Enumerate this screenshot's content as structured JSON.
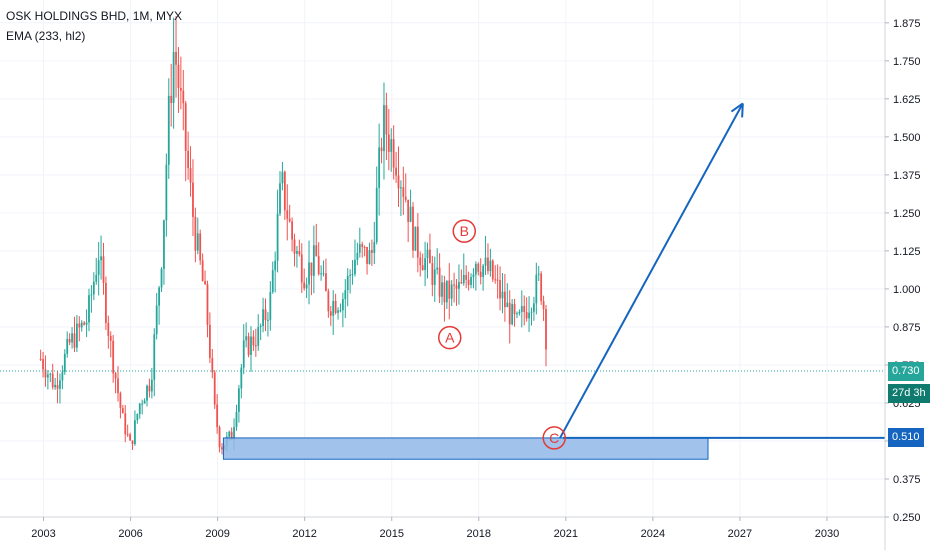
{
  "header": {
    "title": "OSK HOLDINGS BHD, 1M, MYX",
    "indicator": "EMA (233, hl2)"
  },
  "price_tags": {
    "last_price": "0.730",
    "countdown": "27d 3h",
    "level": "0.510"
  },
  "colors": {
    "up": "#26a69a",
    "down": "#ef5350",
    "drawing": "#1565c0",
    "zone_fill": "#90b8e8",
    "last_price_tag": "#26a69a",
    "countdown_tag": "#0f7a6e",
    "level_tag": "#1565c0",
    "wave_label": "#e53935"
  },
  "chart_data": {
    "type": "candlestick",
    "symbol": "OSK HOLDINGS BHD",
    "interval": "1M",
    "exchange": "MYX",
    "indicator": "EMA (233, hl2)",
    "ylim": [
      0.25,
      1.95
    ],
    "xlim": [
      2001.5,
      2032.0
    ],
    "y_ticks": [
      "1.875",
      "1.750",
      "1.625",
      "1.500",
      "1.375",
      "1.250",
      "1.125",
      "1.000",
      "0.875",
      "0.750",
      "0.625",
      "0.500",
      "0.375",
      "0.250"
    ],
    "x_ticks": [
      "2003",
      "2006",
      "2009",
      "2012",
      "2015",
      "2018",
      "2021",
      "2024",
      "2027",
      "2030"
    ],
    "last_price": 0.73,
    "grid": true,
    "path_points": [
      {
        "t": 2002.9,
        "v": 0.77
      },
      {
        "t": 2003.4,
        "v": 0.68
      },
      {
        "t": 2003.9,
        "v": 0.82
      },
      {
        "t": 2004.5,
        "v": 0.9
      },
      {
        "t": 2004.9,
        "v": 1.12
      },
      {
        "t": 2005.3,
        "v": 0.82
      },
      {
        "t": 2005.7,
        "v": 0.58
      },
      {
        "t": 2006.0,
        "v": 0.48
      },
      {
        "t": 2006.3,
        "v": 0.62
      },
      {
        "t": 2006.7,
        "v": 0.7
      },
      {
        "t": 2007.1,
        "v": 1.15
      },
      {
        "t": 2007.3,
        "v": 1.55
      },
      {
        "t": 2007.5,
        "v": 1.8
      },
      {
        "t": 2007.8,
        "v": 1.55
      },
      {
        "t": 2008.2,
        "v": 1.2
      },
      {
        "t": 2008.6,
        "v": 0.95
      },
      {
        "t": 2008.9,
        "v": 0.6
      },
      {
        "t": 2009.1,
        "v": 0.48
      },
      {
        "t": 2009.5,
        "v": 0.52
      },
      {
        "t": 2009.9,
        "v": 0.8
      },
      {
        "t": 2010.4,
        "v": 0.85
      },
      {
        "t": 2010.8,
        "v": 0.95
      },
      {
        "t": 2011.2,
        "v": 1.35
      },
      {
        "t": 2011.6,
        "v": 1.15
      },
      {
        "t": 2012.0,
        "v": 1.05
      },
      {
        "t": 2012.4,
        "v": 1.1
      },
      {
        "t": 2012.8,
        "v": 0.95
      },
      {
        "t": 2013.3,
        "v": 0.97
      },
      {
        "t": 2013.8,
        "v": 1.12
      },
      {
        "t": 2014.3,
        "v": 1.1
      },
      {
        "t": 2014.7,
        "v": 1.55
      },
      {
        "t": 2015.1,
        "v": 1.45
      },
      {
        "t": 2015.5,
        "v": 1.3
      },
      {
        "t": 2015.8,
        "v": 1.15
      },
      {
        "t": 2016.3,
        "v": 1.07
      },
      {
        "t": 2016.8,
        "v": 0.98
      },
      {
        "t": 2017.4,
        "v": 1.0
      },
      {
        "t": 2017.9,
        "v": 1.1
      },
      {
        "t": 2018.4,
        "v": 1.05
      },
      {
        "t": 2018.9,
        "v": 0.95
      },
      {
        "t": 2019.3,
        "v": 0.88
      },
      {
        "t": 2019.7,
        "v": 0.95
      },
      {
        "t": 2020.1,
        "v": 1.03
      },
      {
        "t": 2020.3,
        "v": 0.9
      },
      {
        "t": 2020.35,
        "v": 0.73
      }
    ],
    "drawings": {
      "zone": {
        "t_start": 2009.2,
        "t_end": 2025.9,
        "v_top": 0.51,
        "v_bottom": 0.44
      },
      "horizontal_level": {
        "t_start": 2020.9,
        "v": 0.51
      },
      "projection_arrow": [
        {
          "t": 2020.8,
          "v": 0.51
        },
        {
          "t": 2027.1,
          "v": 1.61
        }
      ],
      "wave_labels": [
        {
          "text": "B",
          "t": 2017.5,
          "v": 1.19
        },
        {
          "text": "A",
          "t": 2017.0,
          "v": 0.84
        },
        {
          "text": "C",
          "t": 2020.6,
          "v": 0.51
        }
      ]
    }
  }
}
